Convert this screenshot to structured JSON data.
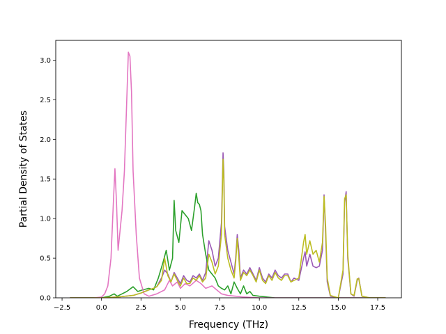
{
  "chart_data": {
    "type": "line",
    "xlabel": "Frequency (THz)",
    "ylabel": "Partial Density of States",
    "xlim": [
      -2.9,
      19.0
    ],
    "ylim": [
      0,
      3.25
    ],
    "xticks": [
      -2.5,
      0.0,
      2.5,
      5.0,
      7.5,
      10.0,
      12.5,
      15.0,
      17.5
    ],
    "xtick_labels": [
      "−2.5",
      "0.0",
      "2.5",
      "5.0",
      "7.5",
      "10.0",
      "12.5",
      "15.0",
      "17.5"
    ],
    "yticks": [
      0.0,
      0.5,
      1.0,
      1.5,
      2.0,
      2.5,
      3.0
    ],
    "ytick_labels": [
      "0.0",
      "0.5",
      "1.0",
      "1.5",
      "2.0",
      "2.5",
      "3.0"
    ],
    "grid": false,
    "legend": "none",
    "series": [
      {
        "color": "#9b59b6",
        "points": [
          [
            -2,
            0
          ],
          [
            0,
            0
          ],
          [
            1,
            0.01
          ],
          [
            2,
            0.03
          ],
          [
            2.5,
            0.06
          ],
          [
            3,
            0.1
          ],
          [
            3.3,
            0.12
          ],
          [
            3.5,
            0.14
          ],
          [
            3.8,
            0.25
          ],
          [
            4,
            0.35
          ],
          [
            4.2,
            0.3
          ],
          [
            4.4,
            0.2
          ],
          [
            4.6,
            0.32
          ],
          [
            4.8,
            0.25
          ],
          [
            5,
            0.18
          ],
          [
            5.2,
            0.28
          ],
          [
            5.4,
            0.22
          ],
          [
            5.6,
            0.2
          ],
          [
            5.8,
            0.28
          ],
          [
            6,
            0.25
          ],
          [
            6.2,
            0.3
          ],
          [
            6.4,
            0.22
          ],
          [
            6.6,
            0.32
          ],
          [
            6.8,
            0.72
          ],
          [
            7,
            0.6
          ],
          [
            7.2,
            0.4
          ],
          [
            7.4,
            0.5
          ],
          [
            7.6,
            0.95
          ],
          [
            7.7,
            1.83
          ],
          [
            7.75,
            1.6
          ],
          [
            7.8,
            0.9
          ],
          [
            8,
            0.6
          ],
          [
            8.2,
            0.45
          ],
          [
            8.4,
            0.3
          ],
          [
            8.5,
            0.5
          ],
          [
            8.6,
            0.8
          ],
          [
            8.7,
            0.6
          ],
          [
            8.8,
            0.25
          ],
          [
            9,
            0.35
          ],
          [
            9.2,
            0.3
          ],
          [
            9.4,
            0.38
          ],
          [
            9.6,
            0.3
          ],
          [
            9.8,
            0.22
          ],
          [
            10,
            0.38
          ],
          [
            10.2,
            0.25
          ],
          [
            10.4,
            0.2
          ],
          [
            10.6,
            0.3
          ],
          [
            10.8,
            0.25
          ],
          [
            11,
            0.35
          ],
          [
            11.2,
            0.28
          ],
          [
            11.4,
            0.25
          ],
          [
            11.6,
            0.3
          ],
          [
            11.8,
            0.3
          ],
          [
            12,
            0.2
          ],
          [
            12.2,
            0.25
          ],
          [
            12.5,
            0.22
          ],
          [
            12.8,
            0.5
          ],
          [
            12.9,
            0.58
          ],
          [
            13,
            0.4
          ],
          [
            13.2,
            0.55
          ],
          [
            13.4,
            0.4
          ],
          [
            13.6,
            0.38
          ],
          [
            13.8,
            0.4
          ],
          [
            14,
            0.6
          ],
          [
            14.1,
            1.3
          ],
          [
            14.2,
            0.8
          ],
          [
            14.3,
            0.2
          ],
          [
            14.5,
            0.02
          ],
          [
            15,
            0
          ],
          [
            15.3,
            0.3
          ],
          [
            15.4,
            1.2
          ],
          [
            15.5,
            1.34
          ],
          [
            15.6,
            0.5
          ],
          [
            15.8,
            0.05
          ],
          [
            16,
            0.02
          ],
          [
            16.2,
            0.22
          ],
          [
            16.3,
            0.25
          ],
          [
            16.5,
            0.02
          ],
          [
            17,
            0
          ],
          [
            18,
            0
          ]
        ]
      },
      {
        "color": "#2ca02c",
        "points": [
          [
            -2,
            0
          ],
          [
            0,
            0
          ],
          [
            0.5,
            0.02
          ],
          [
            0.8,
            0.05
          ],
          [
            1.0,
            0.02
          ],
          [
            1.3,
            0.05
          ],
          [
            1.6,
            0.08
          ],
          [
            2,
            0.14
          ],
          [
            2.3,
            0.08
          ],
          [
            2.6,
            0.1
          ],
          [
            3,
            0.12
          ],
          [
            3.3,
            0.1
          ],
          [
            3.6,
            0.25
          ],
          [
            3.9,
            0.45
          ],
          [
            4.1,
            0.6
          ],
          [
            4.3,
            0.35
          ],
          [
            4.5,
            0.5
          ],
          [
            4.6,
            1.23
          ],
          [
            4.7,
            0.85
          ],
          [
            4.9,
            0.7
          ],
          [
            5,
            0.9
          ],
          [
            5.1,
            1.1
          ],
          [
            5.3,
            1.05
          ],
          [
            5.5,
            1.0
          ],
          [
            5.7,
            0.85
          ],
          [
            5.9,
            1.15
          ],
          [
            6,
            1.32
          ],
          [
            6.1,
            1.2
          ],
          [
            6.2,
            1.18
          ],
          [
            6.3,
            1.1
          ],
          [
            6.4,
            0.8
          ],
          [
            6.6,
            0.55
          ],
          [
            6.8,
            0.35
          ],
          [
            7.0,
            0.3
          ],
          [
            7.2,
            0.25
          ],
          [
            7.4,
            0.15
          ],
          [
            7.6,
            0.12
          ],
          [
            7.8,
            0.1
          ],
          [
            8,
            0.15
          ],
          [
            8.2,
            0.05
          ],
          [
            8.4,
            0.2
          ],
          [
            8.6,
            0.12
          ],
          [
            8.8,
            0.05
          ],
          [
            9,
            0.15
          ],
          [
            9.2,
            0.05
          ],
          [
            9.4,
            0.08
          ],
          [
            9.6,
            0.03
          ],
          [
            10,
            0.02
          ],
          [
            10.5,
            0.01
          ],
          [
            11,
            0
          ],
          [
            12,
            0
          ],
          [
            14,
            0
          ],
          [
            18,
            0
          ]
        ]
      },
      {
        "color": "#e377c2",
        "points": [
          [
            -2,
            0
          ],
          [
            -0.5,
            0
          ],
          [
            0,
            0.01
          ],
          [
            0.2,
            0.05
          ],
          [
            0.4,
            0.15
          ],
          [
            0.6,
            0.5
          ],
          [
            0.75,
            1.2
          ],
          [
            0.85,
            1.63
          ],
          [
            0.95,
            1.2
          ],
          [
            1.05,
            0.6
          ],
          [
            1.15,
            0.8
          ],
          [
            1.3,
            1.1
          ],
          [
            1.45,
            1.6
          ],
          [
            1.6,
            2.5
          ],
          [
            1.7,
            3.1
          ],
          [
            1.8,
            3.05
          ],
          [
            1.9,
            2.6
          ],
          [
            2.0,
            1.6
          ],
          [
            2.2,
            0.8
          ],
          [
            2.4,
            0.25
          ],
          [
            2.7,
            0.05
          ],
          [
            3,
            0.02
          ],
          [
            3.5,
            0.05
          ],
          [
            4,
            0.1
          ],
          [
            4.3,
            0.22
          ],
          [
            4.5,
            0.15
          ],
          [
            4.8,
            0.2
          ],
          [
            5,
            0.12
          ],
          [
            5.3,
            0.18
          ],
          [
            5.6,
            0.15
          ],
          [
            6,
            0.22
          ],
          [
            6.3,
            0.18
          ],
          [
            6.6,
            0.12
          ],
          [
            7,
            0.15
          ],
          [
            7.3,
            0.1
          ],
          [
            7.6,
            0.05
          ],
          [
            8,
            0.03
          ],
          [
            8.5,
            0.02
          ],
          [
            9,
            0.01
          ],
          [
            10,
            0
          ],
          [
            18,
            0
          ]
        ]
      },
      {
        "color": "#bcbd22",
        "points": [
          [
            -2,
            0
          ],
          [
            0,
            0
          ],
          [
            1,
            0.01
          ],
          [
            2,
            0.03
          ],
          [
            2.5,
            0.06
          ],
          [
            3,
            0.1
          ],
          [
            3.3,
            0.12
          ],
          [
            3.5,
            0.14
          ],
          [
            3.8,
            0.22
          ],
          [
            4,
            0.5
          ],
          [
            4.2,
            0.28
          ],
          [
            4.4,
            0.2
          ],
          [
            4.6,
            0.3
          ],
          [
            4.8,
            0.22
          ],
          [
            5,
            0.15
          ],
          [
            5.2,
            0.25
          ],
          [
            5.4,
            0.18
          ],
          [
            5.6,
            0.18
          ],
          [
            5.8,
            0.25
          ],
          [
            6,
            0.22
          ],
          [
            6.2,
            0.28
          ],
          [
            6.4,
            0.2
          ],
          [
            6.6,
            0.25
          ],
          [
            6.8,
            0.55
          ],
          [
            7,
            0.45
          ],
          [
            7.2,
            0.3
          ],
          [
            7.4,
            0.4
          ],
          [
            7.6,
            0.8
          ],
          [
            7.7,
            1.75
          ],
          [
            7.75,
            1.5
          ],
          [
            7.8,
            0.8
          ],
          [
            8,
            0.5
          ],
          [
            8.2,
            0.35
          ],
          [
            8.4,
            0.25
          ],
          [
            8.5,
            0.45
          ],
          [
            8.6,
            0.75
          ],
          [
            8.7,
            0.5
          ],
          [
            8.8,
            0.22
          ],
          [
            9,
            0.32
          ],
          [
            9.2,
            0.28
          ],
          [
            9.4,
            0.35
          ],
          [
            9.6,
            0.28
          ],
          [
            9.8,
            0.2
          ],
          [
            10,
            0.35
          ],
          [
            10.2,
            0.22
          ],
          [
            10.4,
            0.18
          ],
          [
            10.6,
            0.28
          ],
          [
            10.8,
            0.22
          ],
          [
            11,
            0.32
          ],
          [
            11.2,
            0.25
          ],
          [
            11.4,
            0.22
          ],
          [
            11.6,
            0.28
          ],
          [
            11.8,
            0.28
          ],
          [
            12,
            0.2
          ],
          [
            12.2,
            0.22
          ],
          [
            12.5,
            0.25
          ],
          [
            12.8,
            0.7
          ],
          [
            12.9,
            0.8
          ],
          [
            13,
            0.55
          ],
          [
            13.2,
            0.72
          ],
          [
            13.4,
            0.55
          ],
          [
            13.6,
            0.6
          ],
          [
            13.8,
            0.45
          ],
          [
            14,
            0.7
          ],
          [
            14.1,
            1.28
          ],
          [
            14.2,
            0.9
          ],
          [
            14.3,
            0.25
          ],
          [
            14.5,
            0.03
          ],
          [
            15,
            0
          ],
          [
            15.3,
            0.35
          ],
          [
            15.4,
            1.25
          ],
          [
            15.5,
            1.3
          ],
          [
            15.6,
            0.55
          ],
          [
            15.8,
            0.05
          ],
          [
            16,
            0.03
          ],
          [
            16.2,
            0.24
          ],
          [
            16.3,
            0.24
          ],
          [
            16.5,
            0.02
          ],
          [
            17,
            0
          ],
          [
            18,
            0
          ]
        ]
      }
    ]
  }
}
